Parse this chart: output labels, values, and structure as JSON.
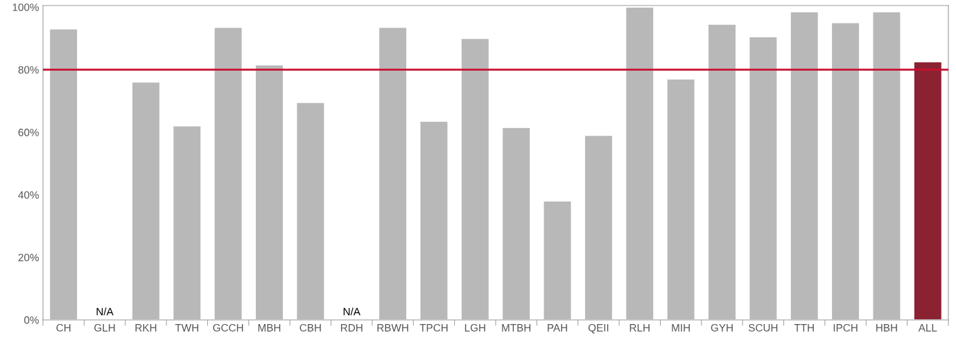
{
  "chart_data": {
    "type": "bar",
    "categories": [
      "CH",
      "GLH",
      "RKH",
      "TWH",
      "GCCH",
      "MBH",
      "CBH",
      "RDH",
      "RBWH",
      "TPCH",
      "LGH",
      "MTBH",
      "PAH",
      "QEII",
      "RLH",
      "MIH",
      "GYH",
      "SCUH",
      "TTH",
      "IPCH",
      "HBH",
      "ALL"
    ],
    "values": [
      93,
      null,
      76,
      62,
      93.5,
      81.5,
      69.5,
      null,
      93.5,
      63.5,
      90,
      61.5,
      38,
      59,
      100,
      77,
      94.5,
      90.5,
      98.5,
      95,
      98.5,
      82.5
    ],
    "value_labels": [
      null,
      "N/A",
      null,
      null,
      null,
      null,
      null,
      "N/A",
      null,
      null,
      null,
      null,
      null,
      null,
      null,
      null,
      null,
      null,
      null,
      null,
      null,
      null
    ],
    "colors": [
      "#b8b8b8",
      "#b8b8b8",
      "#b8b8b8",
      "#b8b8b8",
      "#b8b8b8",
      "#b8b8b8",
      "#b8b8b8",
      "#b8b8b8",
      "#b8b8b8",
      "#b8b8b8",
      "#b8b8b8",
      "#b8b8b8",
      "#b8b8b8",
      "#b8b8b8",
      "#b8b8b8",
      "#b8b8b8",
      "#b8b8b8",
      "#b8b8b8",
      "#b8b8b8",
      "#b8b8b8",
      "#b8b8b8",
      "#8b2232"
    ],
    "ylim": [
      0,
      100.5
    ],
    "yticks": [
      {
        "value": 0,
        "label": "0%"
      },
      {
        "value": 20,
        "label": "20%"
      },
      {
        "value": 40,
        "label": "40%"
      },
      {
        "value": 60,
        "label": "60%"
      },
      {
        "value": 80,
        "label": "80%"
      },
      {
        "value": 100,
        "label": "100%"
      }
    ],
    "ref_lines": [
      {
        "axis": "y",
        "value": 80,
        "color": "#c8102e"
      }
    ],
    "grid": false,
    "legend": false
  }
}
